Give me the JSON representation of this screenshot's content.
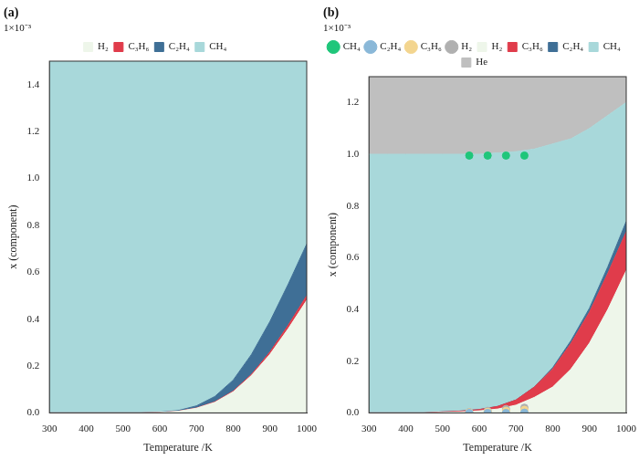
{
  "chart_data": [
    {
      "type": "area",
      "panel_label": "(a)",
      "y_multiplier": "1×10⁻³",
      "x_label": "Temperature /K",
      "y_label": "x (component)",
      "x": [
        300,
        350,
        400,
        450,
        500,
        550,
        600,
        650,
        700,
        750,
        800,
        850,
        900,
        950,
        1000
      ],
      "series": [
        {
          "name": "H₂",
          "type": "area",
          "color": "#eef6ea",
          "values": [
            0,
            0,
            0,
            0,
            0,
            0,
            0.002,
            0.007,
            0.02,
            0.045,
            0.09,
            0.16,
            0.25,
            0.36,
            0.48
          ]
        },
        {
          "name": "C₃H₆",
          "type": "area",
          "color": "#e03c4b",
          "values": [
            0,
            0,
            0,
            0,
            0,
            0,
            0,
            0,
            0.001,
            0.002,
            0.003,
            0.005,
            0.01,
            0.015,
            0.02
          ]
        },
        {
          "name": "C₂H₄",
          "type": "area",
          "color": "#3f6f96",
          "values": [
            0,
            0,
            0,
            0,
            0,
            0,
            0.001,
            0.003,
            0.009,
            0.023,
            0.047,
            0.085,
            0.13,
            0.175,
            0.22
          ]
        },
        {
          "name": "CH₄",
          "type": "area",
          "color": "#a8d8da",
          "values": [
            1.5,
            1.5,
            1.5,
            1.5,
            1.5,
            1.5,
            1.497,
            1.49,
            1.47,
            1.43,
            1.36,
            1.25,
            1.11,
            0.95,
            0.78
          ]
        }
      ],
      "xlim": [
        300,
        1000
      ],
      "xticks": [
        300,
        400,
        500,
        600,
        700,
        800,
        900,
        1000
      ],
      "ylim": [
        0,
        1.5
      ],
      "yticks": [
        {
          "value": 0,
          "label": "0.0"
        },
        0.2,
        0.4,
        0.6,
        0.8,
        {
          "value": 1,
          "label": "1.0"
        },
        1.2,
        1.4
      ],
      "stacked": true,
      "grid": false,
      "legend": "top"
    },
    {
      "type": "area",
      "panel_label": "(b)",
      "y_multiplier": "1×10⁻³",
      "x_label": "Temperature /K",
      "y_label": "x (component)",
      "x": [
        300,
        350,
        400,
        450,
        500,
        550,
        600,
        650,
        700,
        750,
        800,
        850,
        900,
        950,
        1000
      ],
      "series": [
        {
          "name": "H₂",
          "type": "area",
          "color": "#eef6ea",
          "values": [
            0,
            0,
            0,
            0,
            0.002,
            0.004,
            0.008,
            0.015,
            0.03,
            0.06,
            0.1,
            0.17,
            0.27,
            0.4,
            0.55
          ]
        },
        {
          "name": "C₃H₆",
          "type": "area",
          "color": "#e03c4b",
          "values": [
            0,
            0,
            0,
            0,
            0.002,
            0.003,
            0.005,
            0.01,
            0.02,
            0.04,
            0.07,
            0.1,
            0.12,
            0.14,
            0.15
          ]
        },
        {
          "name": "C₂H₄",
          "type": "area",
          "color": "#3f6f96",
          "values": [
            0,
            0,
            0,
            0,
            0,
            0,
            0,
            0,
            0,
            0,
            0.005,
            0.01,
            0.015,
            0.025,
            0.04
          ]
        },
        {
          "name": "CH₄",
          "type": "area",
          "color": "#a8d8da",
          "values": [
            1,
            1,
            1,
            1,
            0.996,
            0.993,
            0.987,
            0.98,
            0.96,
            0.92,
            0.865,
            0.78,
            0.695,
            0.585,
            0.46
          ]
        },
        {
          "name": "He",
          "type": "area",
          "color": "#bfbfbf",
          "values": [
            0.3,
            0.3,
            0.3,
            0.3,
            0.3,
            0.3,
            0.3,
            0.295,
            0.29,
            0.28,
            0.26,
            0.24,
            0.2,
            0.15,
            0.1
          ]
        },
        {
          "name": "CH₄",
          "type": "scatter",
          "marker": "circle",
          "color": "#1fc67a",
          "x": [
            573,
            623,
            673,
            723
          ],
          "values": [
            0.995,
            0.995,
            0.995,
            0.995
          ]
        },
        {
          "name": "C₂H₄",
          "type": "scatter",
          "marker": "circle",
          "color": "#8ab8d8",
          "x": [
            573,
            623,
            673,
            723
          ],
          "values": [
            0,
            0,
            0,
            0.001
          ]
        },
        {
          "name": "C₃H₆",
          "type": "scatter",
          "marker": "circle",
          "color": "#f3d58f",
          "x": [
            573,
            623,
            673,
            723
          ],
          "values": [
            0.002,
            0.004,
            0.008,
            0.012
          ]
        },
        {
          "name": "H₂",
          "type": "scatter",
          "marker": "circle",
          "color": "#b0b0b0",
          "x": [
            573,
            623,
            673,
            723
          ],
          "values": [
            0.003,
            0.008,
            0.015,
            0.02
          ]
        }
      ],
      "xlim": [
        300,
        1000
      ],
      "xticks": [
        300,
        400,
        500,
        600,
        700,
        800,
        900,
        1000
      ],
      "ylim": [
        0,
        1.3
      ],
      "yticks": [
        {
          "value": 0,
          "label": "0.0"
        },
        0.2,
        0.4,
        0.6,
        0.8,
        {
          "value": 1,
          "label": "1.0"
        },
        1.2
      ],
      "stacked": true,
      "grid": false,
      "legend": "top"
    }
  ]
}
